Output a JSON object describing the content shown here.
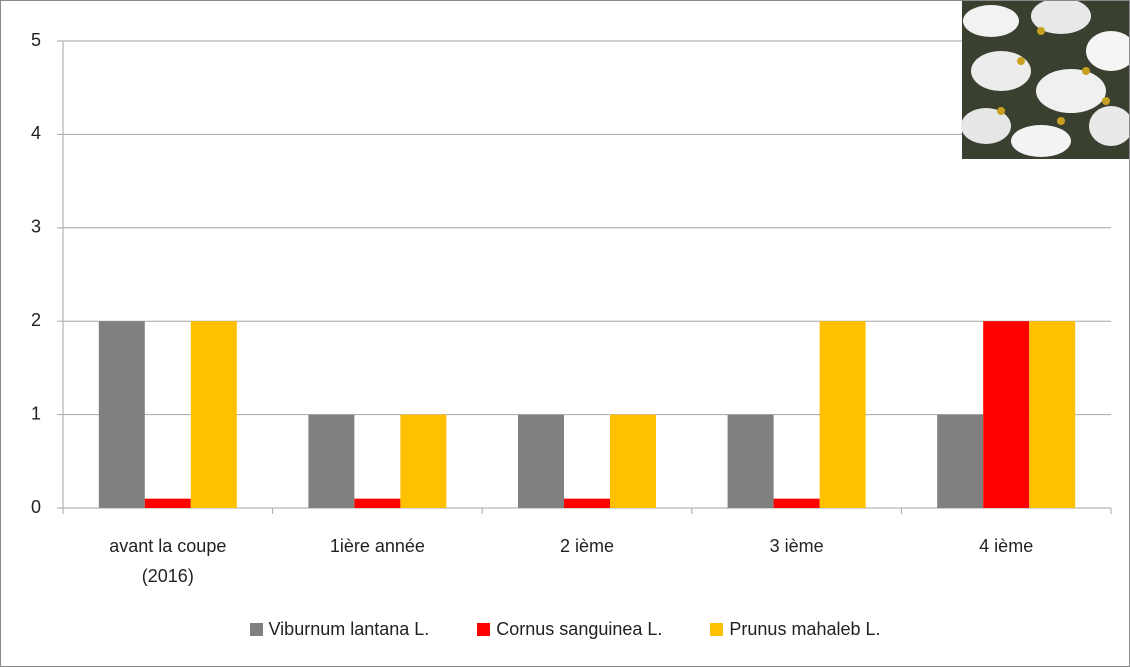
{
  "chart_data": {
    "type": "bar",
    "categories": [
      "avant la coupe (2016)",
      "1ière année",
      "2 ième",
      "3 ième",
      "4 ième"
    ],
    "series": [
      {
        "name": "Viburnum lantana L.",
        "color": "#808080",
        "values": [
          2,
          1,
          1,
          1,
          1
        ]
      },
      {
        "name": "Cornus sanguinea L.",
        "color": "#ff0000",
        "values": [
          0.1,
          0.1,
          0.1,
          0.1,
          2
        ]
      },
      {
        "name": "Prunus mahaleb L.",
        "color": "#ffc000",
        "values": [
          2,
          1,
          1,
          2,
          2
        ]
      }
    ],
    "ylim": [
      0,
      5
    ],
    "yticks": [
      0,
      1,
      2,
      3,
      4,
      5
    ],
    "grid": true,
    "legend": "bottom"
  }
}
